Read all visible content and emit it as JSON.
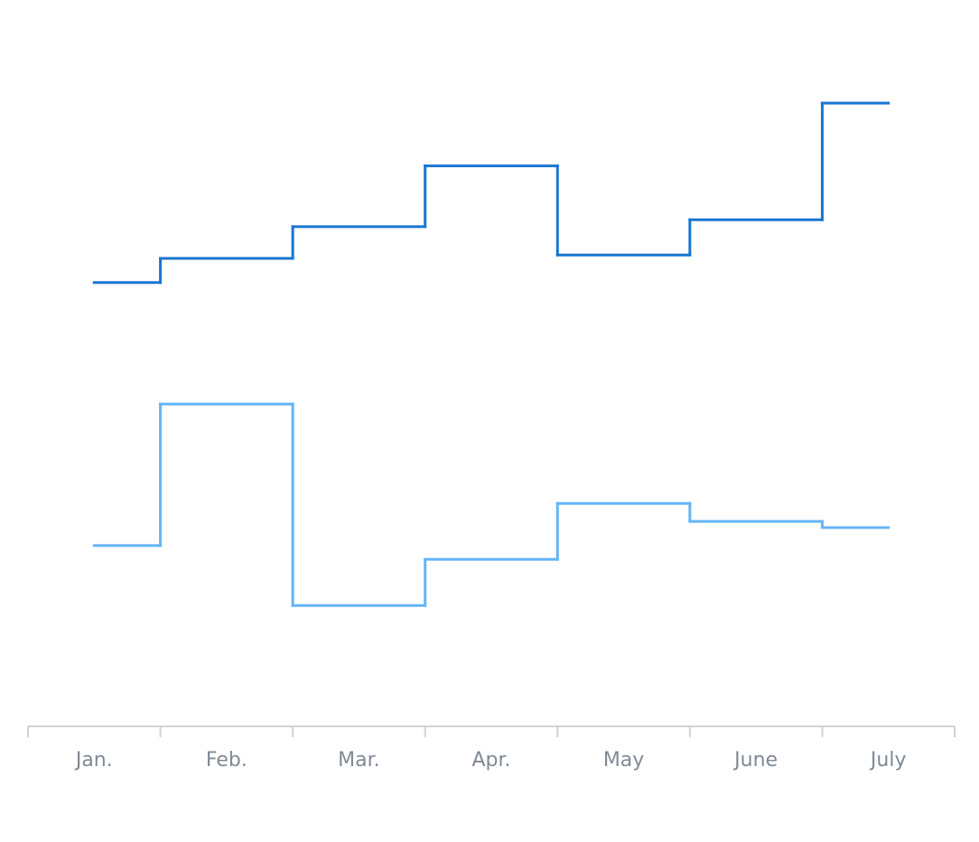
{
  "chart_data": {
    "type": "step",
    "categories": [
      "Jan.",
      "Feb.",
      "Mar.",
      "Apr.",
      "May",
      "June",
      "July"
    ],
    "series": [
      {
        "color": "#1976d2",
        "values": [
          64.3,
          67.8,
          72.4,
          81.2,
          68.3,
          73.4,
          90.3
        ]
      },
      {
        "color": "#64b5f6",
        "values": [
          26.2,
          46.7,
          17.5,
          24.2,
          32.3,
          29.7,
          28.8
        ]
      }
    ],
    "ylim": [
      0,
      100
    ]
  }
}
